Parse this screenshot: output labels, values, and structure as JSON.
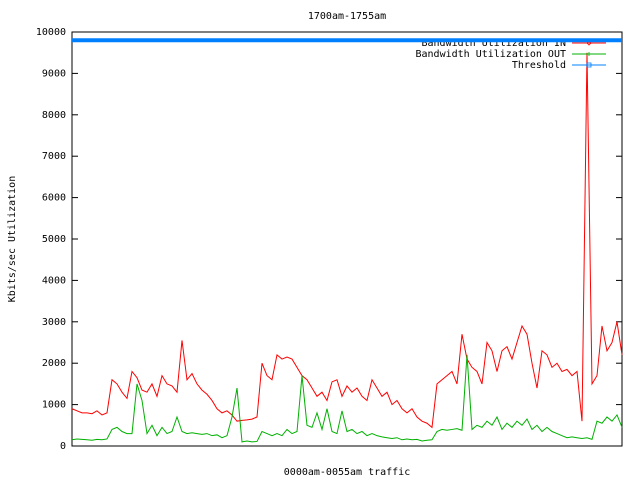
{
  "chart_data": {
    "type": "line",
    "title": "1700am-1755am",
    "x_label": "0000am-0055am traffic",
    "y_label": "Kbits/sec Utilization",
    "ylim": [
      0,
      10000
    ],
    "yticks": [
      0,
      1000,
      2000,
      3000,
      4000,
      5000,
      6000,
      7000,
      8000,
      9000,
      10000
    ],
    "grid": false,
    "legend": "upper right",
    "series": [
      {
        "name": "Bandwidth Utilization IN",
        "color": "#ff0000",
        "values": [
          900,
          850,
          800,
          800,
          780,
          850,
          750,
          800,
          1600,
          1500,
          1300,
          1150,
          1800,
          1650,
          1350,
          1300,
          1500,
          1200,
          1700,
          1500,
          1450,
          1300,
          2550,
          1600,
          1750,
          1500,
          1350,
          1250,
          1100,
          900,
          800,
          850,
          750,
          600,
          620,
          630,
          650,
          700,
          2000,
          1700,
          1600,
          2200,
          2100,
          2150,
          2100,
          1900,
          1700,
          1600,
          1400,
          1200,
          1300,
          1100,
          1550,
          1600,
          1200,
          1450,
          1300,
          1400,
          1200,
          1100,
          1600,
          1400,
          1200,
          1300,
          1000,
          1100,
          900,
          800,
          900,
          700,
          600,
          550,
          450,
          1500,
          1600,
          1700,
          1800,
          1500,
          2700,
          2100,
          1900,
          1800,
          1500,
          2500,
          2300,
          1800,
          2300,
          2400,
          2100,
          2500,
          2900,
          2700,
          2000,
          1400,
          2300,
          2200,
          1900,
          2000,
          1800,
          1850,
          1700,
          1800,
          600,
          9500,
          1500,
          1700,
          2900,
          2300,
          2500,
          3000,
          2200
        ]
      },
      {
        "name": "Bandwidth Utilization OUT",
        "color": "#00b000",
        "values": [
          150,
          170,
          160,
          150,
          140,
          160,
          150,
          170,
          400,
          450,
          350,
          300,
          300,
          1500,
          1100,
          300,
          500,
          250,
          450,
          300,
          350,
          700,
          350,
          300,
          320,
          300,
          280,
          300,
          250,
          270,
          200,
          250,
          700,
          1400,
          100,
          120,
          100,
          110,
          350,
          300,
          250,
          300,
          250,
          400,
          300,
          350,
          1700,
          500,
          450,
          800,
          400,
          900,
          350,
          300,
          850,
          350,
          400,
          300,
          350,
          250,
          300,
          250,
          220,
          200,
          180,
          200,
          150,
          170,
          150,
          160,
          120,
          140,
          150,
          350,
          400,
          380,
          400,
          420,
          380,
          2200,
          400,
          500,
          450,
          600,
          500,
          700,
          400,
          550,
          450,
          600,
          500,
          650,
          400,
          500,
          350,
          450,
          350,
          300,
          250,
          200,
          220,
          200,
          180,
          200,
          160,
          600,
          550,
          700,
          600,
          750,
          450
        ]
      },
      {
        "name": "Threshold",
        "color": "#0080ff",
        "values": [
          9800,
          9800,
          9800,
          9800,
          9800,
          9800,
          9800,
          9800,
          9800,
          9800,
          9800,
          9800,
          9800,
          9800,
          9800,
          9800,
          9800,
          9800,
          9800,
          9800,
          9800,
          9800,
          9800,
          9800,
          9800,
          9800,
          9800,
          9800,
          9800,
          9800,
          9800,
          9800,
          9800,
          9800,
          9800,
          9800,
          9800,
          9800,
          9800,
          9800,
          9800,
          9800,
          9800,
          9800,
          9800,
          9800,
          9800,
          9800,
          9800,
          9800,
          9800,
          9800,
          9800,
          9800,
          9800,
          9800,
          9800,
          9800,
          9800,
          9800,
          9800,
          9800,
          9800,
          9800,
          9800,
          9800,
          9800,
          9800,
          9800,
          9800,
          9800,
          9800,
          9800,
          9800,
          9800,
          9800,
          9800,
          9800,
          9800,
          9800,
          9800,
          9800,
          9800,
          9800,
          9800,
          9800,
          9800,
          9800,
          9800,
          9800,
          9800,
          9800,
          9800,
          9800,
          9800,
          9800,
          9800,
          9800,
          9800,
          9800,
          9800,
          9800,
          9800,
          9800,
          9800,
          9800,
          9800,
          9800,
          9800,
          9800,
          9800
        ]
      }
    ]
  }
}
